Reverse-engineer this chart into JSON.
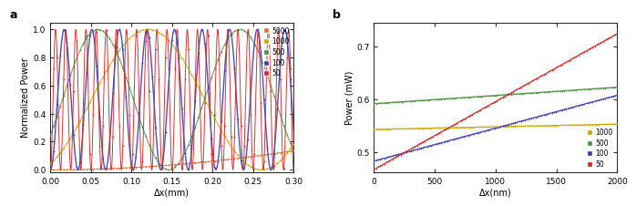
{
  "panel_a": {
    "xlabel": "Δx(mm)",
    "ylabel": "Normalized Power",
    "xlim": [
      0,
      0.3
    ],
    "ylim": [
      -0.02,
      1.05
    ],
    "series": [
      {
        "label": "5000",
        "N": 5000,
        "color": "#d4783a",
        "dot_color": "#d4783a"
      },
      {
        "label": "1000",
        "N": 1000,
        "color": "#c8a800",
        "dot_color": "#c8a800"
      },
      {
        "label": "500",
        "N": 500,
        "color": "#4a8c3f",
        "dot_color": "#4a8c3f"
      },
      {
        "label": "100",
        "N": 100,
        "color": "#3a3aaa",
        "dot_color": "#3a3aaa"
      },
      {
        "label": "50",
        "N": 50,
        "color": "#cc2222",
        "dot_color": "#cc2222"
      }
    ],
    "xticks": [
      0.0,
      0.05,
      0.1,
      0.15,
      0.2,
      0.25,
      0.3
    ],
    "yticks": [
      0.0,
      0.2,
      0.4,
      0.6,
      0.8,
      1.0
    ],
    "period_scale": 0.000265,
    "phase_offsets": {
      "5000": 0.0,
      "1000": 0.0,
      "500": 0.52,
      "100": 0.0,
      "50": 0.0
    }
  },
  "panel_b": {
    "xlabel": "Δx(nm)",
    "ylabel": "Power (mW)",
    "xlim": [
      0,
      2000
    ],
    "ylim": [
      0.462,
      0.745
    ],
    "series": [
      {
        "label": "1000",
        "color": "#c8a800",
        "P0": 0.5435,
        "slope": 5e-06
      },
      {
        "label": "500",
        "color": "#4a8c3f",
        "P0": 0.592,
        "slope": 1.55e-05
      },
      {
        "label": "100",
        "color": "#3a3aaa",
        "P0": 0.484,
        "slope": 6.2e-05
      },
      {
        "label": "50",
        "color": "#cc2222",
        "P0": 0.468,
        "slope": 0.000128
      }
    ],
    "xticks": [
      0,
      500,
      1000,
      1500,
      2000
    ],
    "yticks": [
      0.5,
      0.6,
      0.7
    ]
  }
}
